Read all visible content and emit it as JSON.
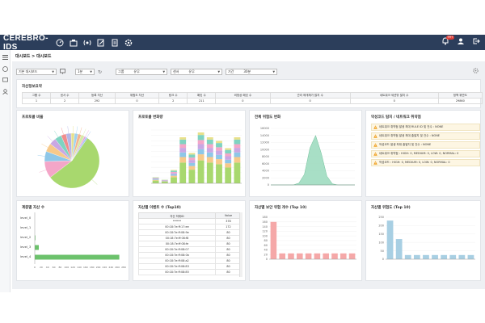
{
  "app": {
    "logo": "CEREBRO-IDS",
    "badge": "99+"
  },
  "nav_icons": [
    "dashboard-icon",
    "assets-icon",
    "sensor-icon",
    "edit-icon",
    "report-icon",
    "settings-icon"
  ],
  "breadcrumb": "대시보드 > 대시보드",
  "filters": {
    "dashboard_select": "기본 대시보드",
    "refresh_select": "1분",
    "group_label": "그룹",
    "group_value": "유무",
    "sensor_label": "센서",
    "sensor_value": "유무",
    "period_label": "기간",
    "period_value": "30분"
  },
  "summary": {
    "title": "자산정보요약",
    "headers": [
      "그룹 수",
      "센서 수",
      "등록 자산",
      "위험도 자산",
      "링크 수",
      "패킷 수",
      "비정상 패킷 수",
      "관리 매개체가 많지 수",
      "네트워크 세션밖 많지 수",
      "정책 위반도"
    ],
    "values": [
      "1",
      "2",
      "292",
      "0",
      "2",
      "211",
      "0",
      "0",
      "0",
      "29860"
    ]
  },
  "panels": {
    "protocol_ratio": {
      "title": "프로토콜 비율"
    },
    "protocol_trend": {
      "title": "프로토콜 변화량"
    },
    "risk_trend": {
      "title": "전체 위험도 변화"
    },
    "threats": {
      "title": "악성코드 탐지 / 네트워크 취약점",
      "items": [
        "네트워크 취약점 발생 최대 RULE ID 및 건수 : NONE",
        "네트워크 취약점 발생 최대 출발지 및 건수 : NONE",
        "악성코드 발생 최대 출발지 및 건수 : NONE",
        "네트워크 취약점 : HIGH: 0, MEDIUM: 0, LOW: 0, NORMAL: 0",
        "악성코드 : HIGH: 0, MEDIUM: 0, LOW: 0, NORMAL: 0"
      ]
    },
    "asset_count": {
      "title": "계층별 자산 수"
    },
    "event_count": {
      "title": "자산별 이벤트 수 (Top10)",
      "headers": [
        "자산 하위ID",
        "Value"
      ]
    },
    "risk_top10_a": {
      "title": "자산별 보안 위험 개수 (Top 10)"
    },
    "risk_top10_b": {
      "title": "자산별 위험도 (Top 10)"
    }
  },
  "event_rows": [
    {
      "id": "******",
      "value": "378"
    },
    {
      "id": "00:18:7e:ff:17:ee",
      "value": "172"
    },
    {
      "id": "00:18:7e:ff:08:9e",
      "value": "80"
    },
    {
      "id": "00:18:7e:ff:08:f8",
      "value": "80"
    },
    {
      "id": "00:18:7e:ff:08:fe",
      "value": "80"
    },
    {
      "id": "00:18:7e:ff:08:07",
      "value": "80"
    },
    {
      "id": "00:18:7e:ff:08:0b",
      "value": "80"
    },
    {
      "id": "00:18:7e:ff:08:a2",
      "value": "80"
    },
    {
      "id": "00:18:7e:ff:08:83",
      "value": "80"
    },
    {
      "id": "00:18:7e:ff:08:85",
      "value": "80"
    }
  ],
  "chart_data": [
    {
      "type": "pie",
      "title": "프로토콜 비율",
      "values": [
        55,
        10,
        6,
        5,
        4,
        4,
        3,
        3,
        2,
        2,
        2,
        2,
        1,
        1
      ],
      "colors": [
        "#a8d86e",
        "#f4a6c8",
        "#8ec7e8",
        "#f7c98a",
        "#c9a7e3",
        "#7fd3c1",
        "#f08c8c",
        "#b5b5e6",
        "#e8e08a",
        "#9fd2f0",
        "#f3b48f",
        "#d6e9a6",
        "#e6a3d9",
        "#a3c4f3"
      ]
    },
    {
      "type": "bar",
      "title": "프로토콜 변화량",
      "categories": [
        "1",
        "2",
        "3",
        "4",
        "5",
        "6",
        "7",
        "8",
        "9",
        "10"
      ],
      "values": [
        25,
        15,
        55,
        190,
        125,
        210,
        190,
        175,
        145,
        190
      ],
      "ylim": [
        0,
        220
      ]
    },
    {
      "type": "area",
      "title": "전체 위험도 변화",
      "x": [
        0,
        1,
        2,
        3,
        4,
        5,
        6,
        7,
        8,
        9,
        10,
        11,
        12,
        13,
        14,
        15
      ],
      "values": [
        0,
        0,
        0,
        0,
        0,
        500,
        3000,
        10500,
        14000,
        9000,
        2500,
        300,
        0,
        0,
        0,
        0
      ],
      "yticks": [
        "0",
        "2000",
        "4000",
        "6000",
        "8000",
        "10000",
        "12000",
        "14000",
        "16000"
      ],
      "ylim": [
        0,
        16000
      ]
    },
    {
      "type": "bar",
      "title": "계층별 자산 수",
      "orientation": "horizontal",
      "categories": [
        "level_0",
        "level_1",
        "level_2",
        "level_3",
        "level_4"
      ],
      "values": [
        0,
        0,
        2,
        13,
        271
      ],
      "xticks": [
        "0",
        "20",
        "40",
        "60",
        "80",
        "100",
        "120",
        "140",
        "160",
        "180",
        "200",
        "220",
        "240",
        "260",
        "280"
      ],
      "xlim": [
        0,
        285
      ]
    },
    {
      "type": "bar",
      "title": "자산별 보안 위험 개수 (Top 10)",
      "values": [
        160,
        25,
        25,
        25,
        25,
        25,
        25,
        25,
        25,
        25
      ],
      "yticks": [
        "0",
        "20",
        "40",
        "60",
        "80",
        "100",
        "120",
        "140",
        "160",
        "180"
      ],
      "ylim": [
        0,
        180
      ],
      "color": "#f5a8a8"
    },
    {
      "type": "bar",
      "title": "자산별 위험도 (Top 10)",
      "values": [
        230,
        120,
        25,
        25,
        25,
        25,
        25,
        25,
        25,
        25
      ],
      "yticks": [
        "0",
        "50",
        "100",
        "150",
        "200",
        "250"
      ],
      "ylim": [
        0,
        250
      ],
      "color": "#a8cfe3"
    }
  ]
}
